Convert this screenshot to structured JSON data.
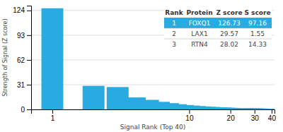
{
  "chart_data": {
    "type": "bar",
    "xlabel": "Signal Rank (Top 40)",
    "ylabel": "Strength of Signal (Z score)",
    "x": [
      1,
      2,
      3,
      4,
      5,
      6,
      7,
      8,
      9,
      10,
      11,
      12,
      13,
      14,
      15,
      16,
      17,
      18,
      19,
      20,
      21,
      22,
      23,
      24,
      25,
      26,
      27,
      28,
      29,
      30,
      31,
      32,
      33,
      34,
      35,
      36,
      37,
      38,
      39,
      40
    ],
    "values": [
      126.73,
      29.57,
      28.02,
      15.0,
      12.0,
      9.5,
      7.8,
      6.5,
      5.5,
      4.8,
      4.2,
      3.7,
      3.3,
      3.0,
      2.7,
      2.5,
      2.3,
      2.1,
      1.9,
      1.8,
      1.7,
      1.6,
      1.5,
      1.4,
      1.35,
      1.3,
      1.25,
      1.2,
      1.15,
      1.1,
      1.05,
      1.0,
      0.95,
      0.9,
      0.85,
      0.8,
      0.75,
      0.7,
      0.65,
      0.6
    ],
    "color": "#29abe2",
    "log": "x",
    "xlim": [
      0.7,
      42
    ],
    "xticks": [
      1,
      10,
      20,
      30,
      40
    ],
    "ylim": [
      0,
      130
    ],
    "yticks": [
      0,
      31,
      62,
      93,
      124
    ],
    "grid": true,
    "table": {
      "rows": [
        [
          "Rank",
          "Protein",
          "Z score",
          "S score"
        ],
        [
          "1",
          "FOXQ1",
          "126.73",
          "97.16"
        ],
        [
          "2",
          "LAX1",
          "29.57",
          "1.55"
        ],
        [
          "3",
          "RTN4",
          "28.02",
          "14.33"
        ]
      ],
      "highlight_row": 1
    }
  }
}
